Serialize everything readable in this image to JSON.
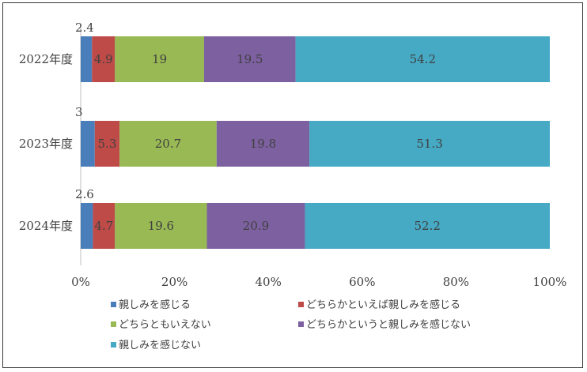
{
  "chart_data": {
    "type": "bar",
    "orientation": "horizontal",
    "stacked": "percent",
    "categories": [
      "2022年度",
      "2023年度",
      "2024年度"
    ],
    "series": [
      {
        "name": "親しみを感じる",
        "color": "#4a7ebb",
        "values": [
          2.4,
          3,
          2.6
        ]
      },
      {
        "name": "どちらかといえば親しみを感じる",
        "color": "#be4b48",
        "values": [
          4.9,
          5.3,
          4.7
        ]
      },
      {
        "name": "どちらともいえない",
        "color": "#98b954",
        "values": [
          19,
          20.7,
          19.6
        ]
      },
      {
        "name": "どちらかというと親しみを感じない",
        "color": "#7d60a0",
        "values": [
          19.5,
          19.8,
          20.9
        ]
      },
      {
        "name": "親しみを感じない",
        "color": "#46aac5",
        "values": [
          54.2,
          51.3,
          52.2
        ]
      }
    ],
    "x_ticks": [
      "0%",
      "20%",
      "40%",
      "60%",
      "80%",
      "100%"
    ],
    "xlim": [
      0,
      100
    ],
    "data_labels": [
      [
        "2.4",
        "4.9",
        "19",
        "19.5",
        "54.2"
      ],
      [
        "3",
        "5.3",
        "20.7",
        "19.8",
        "51.3"
      ],
      [
        "2.6",
        "4.7",
        "19.6",
        "20.9",
        "52.2"
      ]
    ],
    "legend_position": "bottom",
    "grid": false
  }
}
